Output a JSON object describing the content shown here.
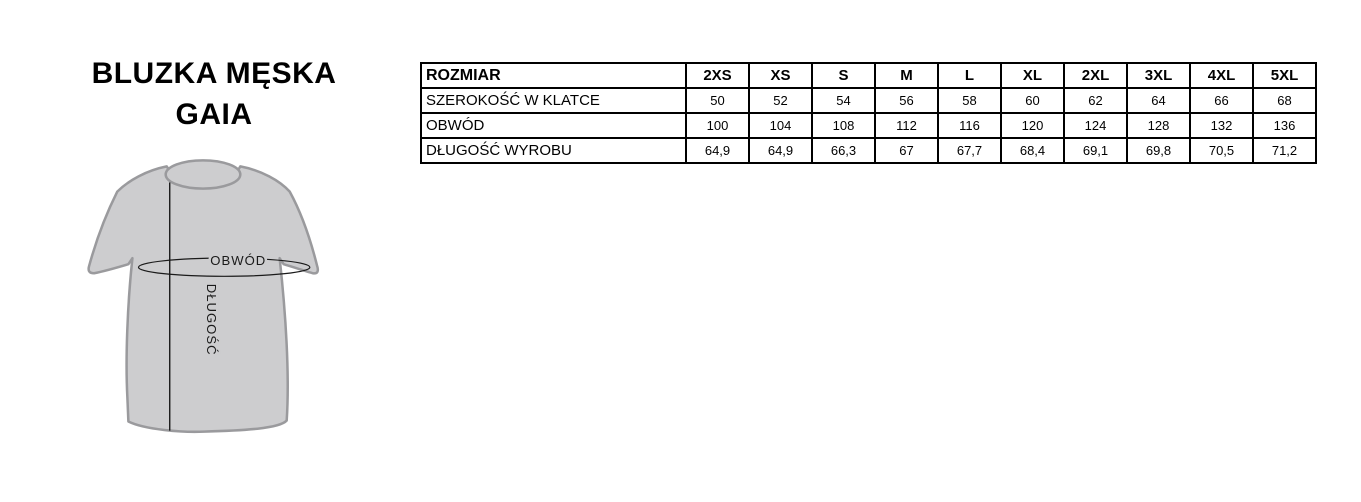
{
  "title": {
    "line1": "BLUZKA MĘSKA",
    "line2": "GAIA"
  },
  "diagram": {
    "garment": "t-shirt front view with measurement guides",
    "circumference_label": "OBWÓD",
    "length_label": "DŁUGOŚĆ",
    "colors": {
      "shirt_fill": "#cdcdcf",
      "shirt_outline": "#9a9a9d",
      "measure_line": "#1a1a1a"
    }
  },
  "size_table": {
    "corner_label": "ROZMIAR",
    "sizes": [
      "2XS",
      "XS",
      "S",
      "M",
      "L",
      "XL",
      "2XL",
      "3XL",
      "4XL",
      "5XL"
    ],
    "rows": [
      {
        "label": "SZEROKOŚĆ W KLATCE",
        "values": [
          "50",
          "52",
          "54",
          "56",
          "58",
          "60",
          "62",
          "64",
          "66",
          "68"
        ]
      },
      {
        "label": "OBWÓD",
        "values": [
          "100",
          "104",
          "108",
          "112",
          "116",
          "120",
          "124",
          "128",
          "132",
          "136"
        ]
      },
      {
        "label": "DŁUGOŚĆ WYROBU",
        "values": [
          "64,9",
          "64,9",
          "66,3",
          "67",
          "67,7",
          "68,4",
          "69,1",
          "69,8",
          "70,5",
          "71,2"
        ]
      }
    ]
  }
}
